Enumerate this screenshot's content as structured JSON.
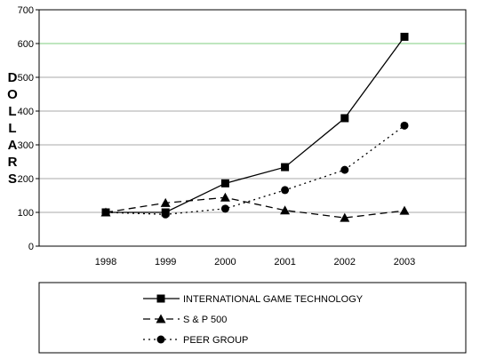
{
  "chart_data": {
    "type": "line",
    "title": "",
    "xlabel": "",
    "ylabel": "DOLLARS",
    "categories": [
      "1998",
      "1999",
      "2000",
      "2001",
      "2002",
      "2003"
    ],
    "ylim": [
      0,
      700
    ],
    "yticks": [
      0,
      100,
      200,
      300,
      400,
      500,
      600,
      700
    ],
    "grid": true,
    "highlight_gridline": {
      "value": 600,
      "color": "#7fce7f"
    },
    "legend_position": "bottom",
    "series": [
      {
        "name": "INTERNATIONAL GAME TECHNOLOGY",
        "values": [
          100,
          100,
          186,
          234,
          379,
          620
        ],
        "line_style": "solid",
        "marker": "square"
      },
      {
        "name": "S & P 500",
        "values": [
          100,
          128,
          144,
          106,
          84,
          105
        ],
        "line_style": "dashed",
        "marker": "triangle"
      },
      {
        "name": "PEER GROUP",
        "values": [
          100,
          94,
          111,
          166,
          226,
          357
        ],
        "line_style": "dotted",
        "marker": "circle"
      }
    ]
  }
}
